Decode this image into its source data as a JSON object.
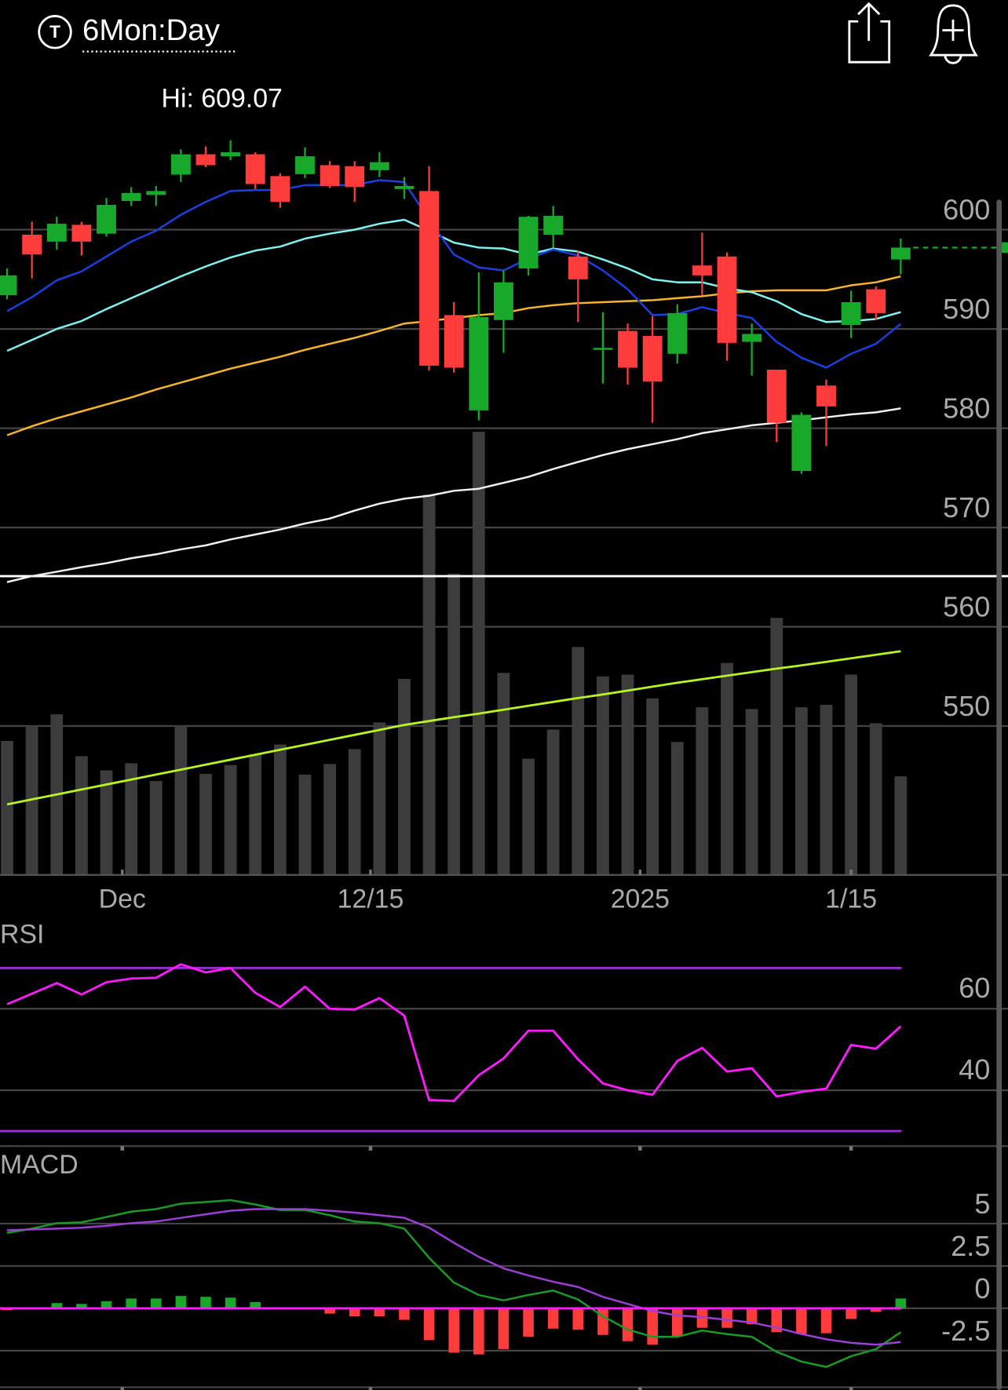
{
  "header": {
    "icon": "T",
    "timeframe": "6Mon:Day"
  },
  "chart_data": [
    {
      "type": "candlestick",
      "annotation": "Hi: 609.07",
      "open": [
        593.4,
        599.5,
        598.8,
        600.5,
        599.6,
        602.9,
        603.5,
        605.55,
        607.6,
        607.4,
        607.6,
        605.4,
        605.6,
        606.5,
        606.4,
        606.0,
        604.1,
        603.9,
        591.4,
        581.8,
        590.9,
        596.1,
        599.5,
        597.3,
        587.9,
        589.8,
        589.3,
        587.5,
        596.4,
        597.3,
        588.7,
        585.9,
        575.7,
        584.3,
        590.4,
        594.0,
        597.0
      ],
      "high": [
        596.1,
        600.8,
        601.3,
        600.8,
        603.2,
        604.3,
        604.4,
        608.1,
        608.4,
        609.0,
        607.8,
        605.7,
        608.3,
        606.9,
        606.9,
        607.8,
        605.3,
        606.4,
        592.7,
        595.7,
        595.9,
        601.4,
        602.4,
        597.9,
        591.7,
        590.55,
        591.3,
        592.5,
        599.7,
        597.7,
        590.55,
        585.9,
        581.6,
        584.9,
        593.85,
        594.3,
        599.1
      ],
      "low": [
        593.0,
        595.1,
        598.0,
        597.4,
        599.3,
        602.4,
        602.4,
        604.8,
        606.3,
        607.0,
        604.1,
        602.2,
        605.2,
        604.2,
        602.8,
        605.3,
        603.1,
        585.8,
        585.6,
        580.8,
        587.6,
        595.4,
        598.2,
        590.7,
        584.5,
        584.4,
        580.55,
        586.5,
        593.4,
        586.8,
        585.3,
        578.6,
        575.4,
        578.2,
        589.1,
        590.9,
        595.5
      ],
      "close": [
        595.4,
        597.5,
        600.6,
        598.8,
        602.5,
        603.7,
        603.9,
        607.6,
        606.5,
        607.8,
        604.6,
        602.8,
        607.4,
        604.4,
        604.3,
        606.8,
        604.4,
        586.3,
        586.1,
        591.2,
        594.7,
        601.3,
        601.4,
        595.0,
        588.1,
        586.1,
        584.7,
        591.6,
        595.4,
        588.6,
        589.5,
        580.55,
        581.35,
        582.2,
        592.7,
        591.6,
        598.2
      ],
      "up_color": "#18a82a",
      "down_color": "#fe3c3c",
      "overlays": [
        {
          "color": "#f0f0f0",
          "values": [
            564.5,
            565.1,
            565.55,
            566.0,
            566.4,
            566.9,
            567.3,
            567.8,
            568.2,
            568.8,
            569.3,
            569.8,
            570.4,
            570.9,
            571.7,
            572.4,
            572.9,
            573.2,
            573.7,
            573.9,
            574.5,
            575.1,
            575.9,
            576.6,
            577.3,
            577.9,
            578.4,
            578.9,
            579.5,
            579.9,
            580.3,
            580.55,
            580.8,
            581.1,
            581.4,
            581.6,
            582.0
          ]
        },
        {
          "color": "#f7b52a",
          "values": [
            579.3,
            580.2,
            581.0,
            581.7,
            582.4,
            583.1,
            583.9,
            584.6,
            585.3,
            586.0,
            586.6,
            587.2,
            587.9,
            588.5,
            589.1,
            589.8,
            590.55,
            590.8,
            591.1,
            591.4,
            591.6,
            592.1,
            592.4,
            592.6,
            592.7,
            592.8,
            592.9,
            593.1,
            593.3,
            593.6,
            593.8,
            593.9,
            593.9,
            593.9,
            594.4,
            594.7,
            595.3
          ]
        },
        {
          "color": "#7ff3f0",
          "values": [
            587.8,
            588.9,
            590.0,
            590.8,
            592.0,
            593.1,
            594.2,
            595.3,
            596.3,
            597.2,
            597.9,
            598.3,
            599.1,
            599.6,
            600.0,
            600.6,
            601.0,
            599.9,
            598.7,
            598.2,
            598.1,
            597.5,
            598.1,
            597.8,
            597.0,
            596.1,
            595.0,
            594.7,
            594.7,
            594.1,
            593.7,
            592.8,
            591.5,
            590.7,
            590.8,
            591.0,
            591.7
          ]
        },
        {
          "color": "#1c3fe0",
          "values": [
            591.8,
            593.2,
            594.9,
            595.8,
            597.3,
            598.8,
            599.9,
            601.5,
            602.8,
            603.9,
            604.0,
            604.0,
            604.5,
            604.5,
            604.5,
            605.0,
            604.8,
            601.0,
            597.5,
            596.2,
            595.9,
            597.1,
            598.0,
            597.4,
            595.9,
            594.0,
            591.4,
            591.5,
            592.2,
            591.6,
            591.1,
            588.7,
            587.1,
            586.1,
            587.5,
            588.5,
            590.5
          ]
        }
      ],
      "level_line": 565.1,
      "volume": {
        "color": "#3c3c3c",
        "values": [
          37.8,
          42,
          45.3,
          33.5,
          29.5,
          31.5,
          26.5,
          42,
          28.5,
          31,
          34,
          36.8,
          28.3,
          31.3,
          35.5,
          43,
          55.3,
          107.3,
          85,
          125,
          57,
          32.8,
          41,
          64.3,
          56,
          56.5,
          49.8,
          37.5,
          47.3,
          59.8,
          46.8,
          72.5,
          47.3,
          48,
          56.5,
          42.8,
          27.8
        ],
        "ma": {
          "color": "#b8f41f",
          "values": [
            19.9,
            21.3,
            22.7,
            24.1,
            25.5,
            26.9,
            28.3,
            29.7,
            31.1,
            32.5,
            33.9,
            35.3,
            36.7,
            38.1,
            39.5,
            40.9,
            42.3,
            43.4,
            44.5,
            45.5,
            46.6,
            47.7,
            48.8,
            49.9,
            50.9,
            52.0,
            53.1,
            54.2,
            55.2,
            56.2,
            57.2,
            58.2,
            59.1,
            60.1,
            61.1,
            62.1,
            63.1
          ]
        }
      },
      "ylim": [
        535,
        610.63
      ],
      "yticks": [
        550,
        560,
        570,
        580,
        590,
        600
      ],
      "xlim": [
        -0.286,
        40.321
      ],
      "xticks": [
        {
          "value": 4.64,
          "label": "Dec"
        },
        {
          "value": 14.64,
          "label": "12/15"
        },
        {
          "value": 25.5,
          "label": "2025"
        },
        {
          "value": 34.0,
          "label": "1/15"
        }
      ],
      "grid": true
    },
    {
      "type": "line",
      "title": "RSI",
      "color": "#ff1aff",
      "values": [
        61.1,
        63.7,
        66.3,
        63.5,
        66.5,
        67.4,
        67.6,
        70.9,
        68.9,
        70.0,
        63.9,
        60.4,
        65.4,
        60.0,
        59.8,
        62.6,
        58.3,
        37.6,
        37.4,
        43.7,
        47.8,
        54.6,
        54.6,
        47.6,
        41.7,
        40.0,
        38.9,
        47.2,
        50.4,
        44.6,
        45.4,
        38.5,
        39.6,
        40.4,
        51.1,
        50.2,
        55.7
      ],
      "bands": [
        30,
        70
      ],
      "band_color": "#9b2fd6",
      "ylim": [
        26.3,
        81.3
      ],
      "yticks": [
        40,
        60
      ],
      "grid": true
    },
    {
      "type": "macd",
      "title": "MACD",
      "macd": {
        "color": "#1a9a26",
        "values": [
          4.45,
          4.71,
          5.03,
          5.08,
          5.39,
          5.71,
          5.86,
          6.18,
          6.28,
          6.39,
          6.13,
          5.81,
          5.81,
          5.5,
          5.13,
          5.03,
          4.71,
          2.98,
          1.52,
          0.79,
          0.47,
          0.79,
          1.05,
          0.52,
          -0.47,
          -1.26,
          -1.68,
          -1.68,
          -1.31,
          -1.52,
          -1.68,
          -2.57,
          -3.14,
          -3.46,
          -2.83,
          -2.41,
          -1.41
        ]
      },
      "signal": {
        "color": "#9b3fd6",
        "values": [
          4.61,
          4.66,
          4.71,
          4.76,
          4.87,
          5.03,
          5.13,
          5.34,
          5.55,
          5.76,
          5.86,
          5.86,
          5.86,
          5.76,
          5.65,
          5.5,
          5.34,
          4.76,
          3.87,
          3.04,
          2.36,
          1.94,
          1.57,
          1.26,
          0.68,
          0.26,
          -0.16,
          -0.42,
          -0.52,
          -0.68,
          -0.84,
          -1.15,
          -1.52,
          -1.83,
          -2.04,
          -2.15,
          -1.99
        ]
      },
      "histogram": {
        "up_color": "#18a82a",
        "down_color": "#fe3c3c",
        "values": [
          -0.1,
          0,
          0.31,
          0.26,
          0.42,
          0.58,
          0.58,
          0.73,
          0.68,
          0.63,
          0.37,
          0,
          0,
          -0.31,
          -0.47,
          -0.47,
          -0.68,
          -1.88,
          -2.62,
          -2.72,
          -2.41,
          -1.68,
          -1.2,
          -1.26,
          -1.57,
          -1.94,
          -2.15,
          -1.68,
          -1.15,
          -1.15,
          -0.94,
          -1.41,
          -1.52,
          -1.47,
          -0.63,
          -0.21,
          0.58
        ]
      },
      "zero_color": "#ff1aff",
      "ylim": [
        -4.66,
        9.21
      ],
      "yticks": [
        5,
        2.5,
        0,
        -2.5
      ],
      "grid": true
    }
  ]
}
